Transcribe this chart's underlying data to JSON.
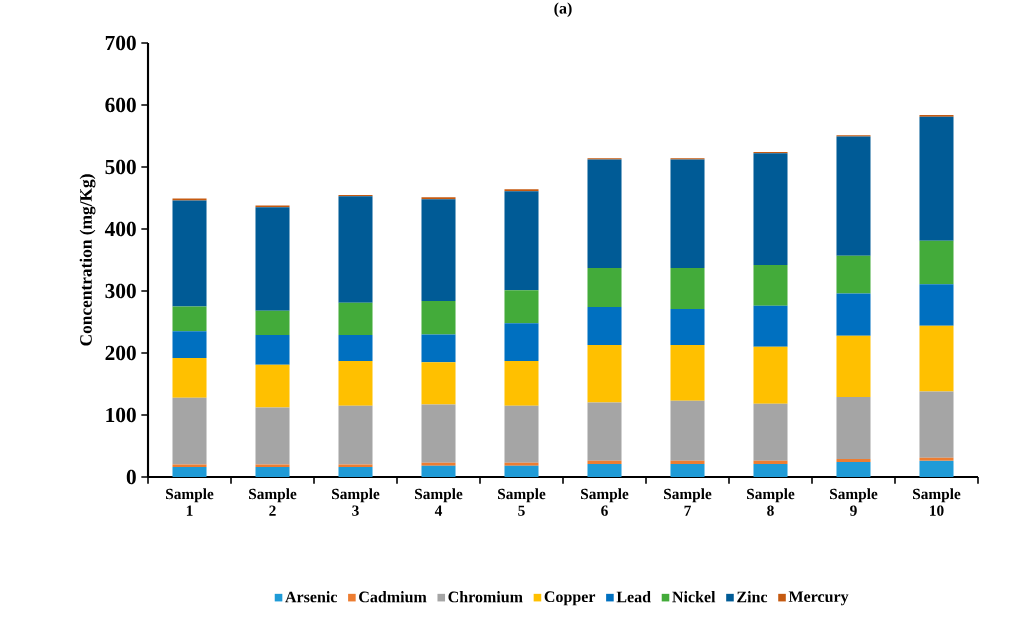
{
  "chart_data": {
    "type": "bar",
    "title": "(a)",
    "ylabel": "Concentration (mg/Kg)",
    "categories": [
      "Sample 1",
      "Sample 2",
      "Sample 3",
      "Sample 4",
      "Sample 5",
      "Sample 6",
      "Sample 7",
      "Sample 8",
      "Sample 9",
      "Sample 10"
    ],
    "stacked": true,
    "ylim": [
      0,
      700
    ],
    "yticks": [
      0,
      100,
      200,
      300,
      400,
      500,
      600,
      700
    ],
    "legend": "bottom",
    "series": [
      {
        "name": "Arsenic",
        "color": "#1f9bd7",
        "values": [
          16,
          16,
          16,
          18,
          18,
          21,
          21,
          21,
          24,
          26
        ]
      },
      {
        "name": "Cadmium",
        "color": "#ed7d31",
        "values": [
          4,
          4,
          4,
          5,
          5,
          5,
          5,
          5,
          5,
          5
        ]
      },
      {
        "name": "Chromium",
        "color": "#a5a5a5",
        "values": [
          108,
          92,
          95,
          94,
          92,
          94,
          97,
          92,
          100,
          107
        ]
      },
      {
        "name": "Copper",
        "color": "#ffc000",
        "values": [
          64,
          69,
          72,
          68,
          72,
          93,
          90,
          92,
          99,
          106
        ]
      },
      {
        "name": "Lead",
        "color": "#0070c0",
        "values": [
          43,
          48,
          42,
          45,
          61,
          61,
          58,
          66,
          68,
          67
        ]
      },
      {
        "name": "Nickel",
        "color": "#43ab3a",
        "values": [
          40,
          39,
          52,
          54,
          53,
          63,
          66,
          66,
          61,
          70
        ]
      },
      {
        "name": "Zinc",
        "color": "#005b96",
        "values": [
          171,
          167,
          172,
          164,
          160,
          175,
          175,
          180,
          192,
          200
        ]
      },
      {
        "name": "Mercury",
        "color": "#c55a11",
        "values": [
          3,
          3,
          2,
          3,
          3,
          2,
          2,
          2,
          2,
          3
        ]
      }
    ]
  }
}
